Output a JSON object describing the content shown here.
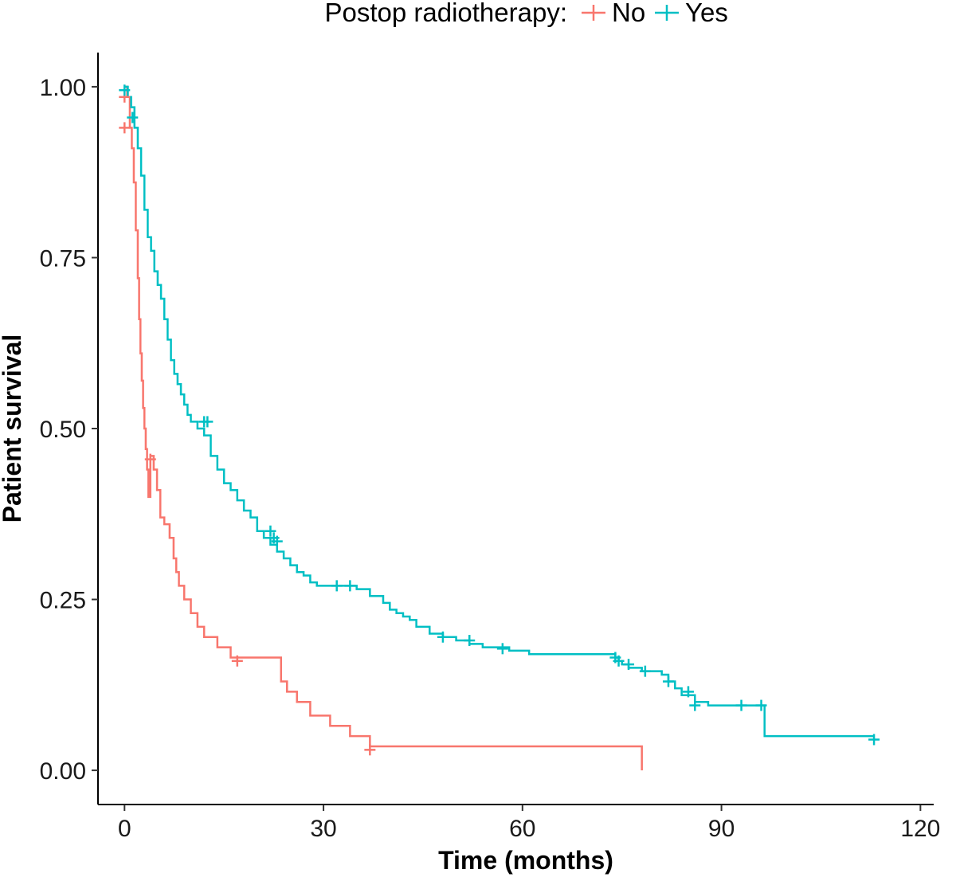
{
  "chart_data": {
    "type": "line",
    "subtype": "kaplan-meier-step",
    "title": "",
    "xlabel": "Time (months)",
    "ylabel": "Patient survival",
    "xlim": [
      -4,
      122
    ],
    "ylim": [
      -0.05,
      1.05
    ],
    "x_ticks": [
      0,
      30,
      60,
      90,
      120
    ],
    "x_tick_labels": [
      "0",
      "30",
      "60",
      "90",
      "120"
    ],
    "y_ticks": [
      0,
      0.25,
      0.5,
      0.75,
      1
    ],
    "y_tick_labels": [
      "0.00",
      "0.25",
      "0.50",
      "0.75",
      "1.00"
    ],
    "grid": false,
    "legend": {
      "title": "Postop radiotherapy:",
      "position": "top"
    },
    "series": [
      {
        "name": "No",
        "color": "#F8766D",
        "x": [
          0,
          0.4,
          0.8,
          1.1,
          1.4,
          1.7,
          2.0,
          2.2,
          2.4,
          2.6,
          2.8,
          3.0,
          3.2,
          3.4,
          3.6,
          3.9,
          4.4,
          4.9,
          5.4,
          6.0,
          6.8,
          7.4,
          7.8,
          8.2,
          9.0,
          10.0,
          11.0,
          12.0,
          14.0,
          16.0,
          18.0,
          23.0,
          23.6,
          24.5,
          26.0,
          28.0,
          31.0,
          34.0,
          37.0,
          78.0
        ],
        "y": [
          1.0,
          0.985,
          0.94,
          0.91,
          0.86,
          0.79,
          0.72,
          0.66,
          0.61,
          0.57,
          0.53,
          0.5,
          0.47,
          0.44,
          0.4,
          0.46,
          0.44,
          0.41,
          0.37,
          0.36,
          0.34,
          0.31,
          0.29,
          0.27,
          0.25,
          0.23,
          0.21,
          0.195,
          0.18,
          0.165,
          0.165,
          0.165,
          0.13,
          0.115,
          0.1,
          0.08,
          0.065,
          0.05,
          0.035,
          0.0
        ],
        "censored_x": [
          0.0,
          0.0,
          3.9,
          17.0,
          37.0
        ],
        "censored_y": [
          0.985,
          0.94,
          0.455,
          0.16,
          0.03
        ]
      },
      {
        "name": "Yes",
        "color": "#00BFC4",
        "x": [
          0,
          0.5,
          1.0,
          1.5,
          2.0,
          2.5,
          3.0,
          3.5,
          4.0,
          4.5,
          5.0,
          5.5,
          6.0,
          6.5,
          7.0,
          7.5,
          8.0,
          8.5,
          9.0,
          9.5,
          10.0,
          11.0,
          12.0,
          13.0,
          14.0,
          15.0,
          16.0,
          17.0,
          18.0,
          19.0,
          20.0,
          21.0,
          22.0,
          23.0,
          24.0,
          25.0,
          26.0,
          27.0,
          28.0,
          29.0,
          30.0,
          31.0,
          32.0,
          33.0,
          34.0,
          35.0,
          37.0,
          39.0,
          40.0,
          41.0,
          42.0,
          43.0,
          44.0,
          46.0,
          48.0,
          50.0,
          52.0,
          54.0,
          55.0,
          58.0,
          61.0,
          64.0,
          70.0,
          74.0,
          74.5,
          75.0,
          76.0,
          78.0,
          81.0,
          82.0,
          83.0,
          84.0,
          86.0,
          88.0,
          91.0,
          94.0,
          96.0,
          96.5,
          113.0
        ],
        "y": [
          1.0,
          0.985,
          0.97,
          0.94,
          0.91,
          0.87,
          0.82,
          0.78,
          0.76,
          0.73,
          0.71,
          0.69,
          0.66,
          0.63,
          0.6,
          0.58,
          0.565,
          0.55,
          0.535,
          0.52,
          0.51,
          0.5,
          0.49,
          0.46,
          0.44,
          0.42,
          0.41,
          0.395,
          0.38,
          0.37,
          0.35,
          0.34,
          0.33,
          0.32,
          0.31,
          0.3,
          0.29,
          0.285,
          0.275,
          0.27,
          0.27,
          0.27,
          0.27,
          0.27,
          0.27,
          0.265,
          0.255,
          0.245,
          0.235,
          0.23,
          0.225,
          0.22,
          0.21,
          0.2,
          0.195,
          0.19,
          0.185,
          0.18,
          0.18,
          0.175,
          0.17,
          0.17,
          0.17,
          0.165,
          0.16,
          0.155,
          0.15,
          0.145,
          0.14,
          0.13,
          0.12,
          0.11,
          0.1,
          0.095,
          0.095,
          0.095,
          0.095,
          0.05,
          0.05
        ],
        "censored_x": [
          0.0,
          1.2,
          12.0,
          12.5,
          22.0,
          22.5,
          23.0,
          32.0,
          34.0,
          48.0,
          52.0,
          57.0,
          74.0,
          74.5,
          76.0,
          78.5,
          82.0,
          85.0,
          86.0,
          93.0,
          96.0,
          113.0
        ],
        "censored_y": [
          0.995,
          0.955,
          0.51,
          0.51,
          0.35,
          0.34,
          0.335,
          0.27,
          0.27,
          0.195,
          0.19,
          0.178,
          0.165,
          0.16,
          0.155,
          0.145,
          0.13,
          0.115,
          0.095,
          0.095,
          0.095,
          0.045
        ]
      }
    ]
  }
}
